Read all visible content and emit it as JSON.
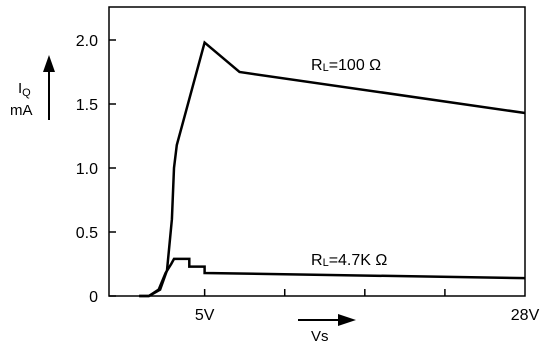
{
  "chart_data": {
    "type": "line",
    "title": "",
    "ylabel_main": "I",
    "ylabel_sub": "Q",
    "ylabel_unit": "mA",
    "xlabel": "Vs",
    "xlim": [
      0,
      28
    ],
    "ylim": [
      0,
      2.0
    ],
    "yticks": [
      {
        "value": 0,
        "label": "0"
      },
      {
        "value": 0.5,
        "label": "0.5"
      },
      {
        "value": 1.0,
        "label": "1.0"
      },
      {
        "value": 1.5,
        "label": "1.5"
      },
      {
        "value": 2.0,
        "label": "2.0"
      }
    ],
    "xticks": [
      {
        "value": 5,
        "label": "5V"
      },
      {
        "value": 28,
        "label": "28V"
      }
    ],
    "grid": false,
    "series": [
      {
        "label_main": "R",
        "label_sub": "L",
        "label_rest": "=100 Ω",
        "color": "#000000",
        "points": [
          [
            0.3,
            0
          ],
          [
            1.0,
            0
          ],
          [
            1.8,
            0.05
          ],
          [
            2.3,
            0.2
          ],
          [
            2.65,
            0.6
          ],
          [
            2.8,
            1.0
          ],
          [
            3.0,
            1.18
          ],
          [
            3.3,
            1.3
          ],
          [
            5.0,
            1.98
          ],
          [
            7.5,
            1.75
          ],
          [
            28.0,
            1.43
          ]
        ]
      },
      {
        "label_main": "R",
        "label_sub": "L",
        "label_rest": "=4.7K Ω",
        "color": "#000000",
        "points": [
          [
            0.3,
            0
          ],
          [
            1.0,
            0
          ],
          [
            1.7,
            0.05
          ],
          [
            2.2,
            0.18
          ],
          [
            2.6,
            0.25
          ],
          [
            2.8,
            0.29
          ],
          [
            3.9,
            0.29
          ],
          [
            3.9,
            0.23
          ],
          [
            5.0,
            0.23
          ],
          [
            5.0,
            0.18
          ],
          [
            28.0,
            0.14
          ]
        ]
      }
    ]
  }
}
